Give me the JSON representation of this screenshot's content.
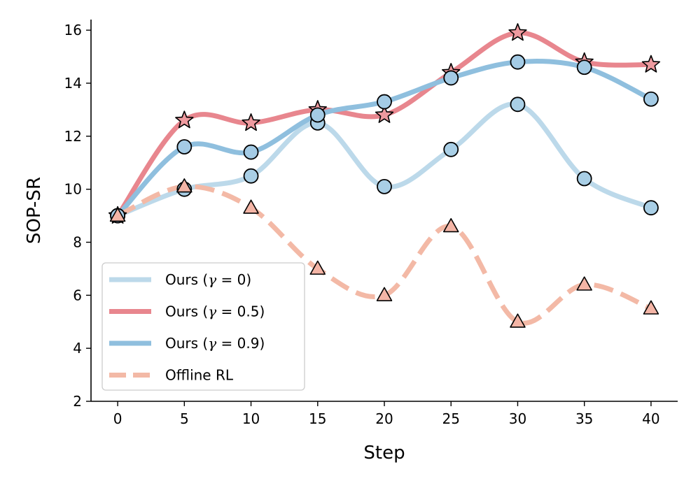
{
  "chart_data": {
    "type": "line",
    "title": "",
    "xlabel": "Step",
    "ylabel": "SOP-SR",
    "x": [
      0,
      5,
      10,
      15,
      20,
      25,
      30,
      35,
      40
    ],
    "xlim": [
      -2,
      42
    ],
    "ylim": [
      2,
      16.4
    ],
    "xticks": [
      "0",
      "5",
      "10",
      "15",
      "20",
      "25",
      "30",
      "35",
      "40"
    ],
    "yticks": [
      "2",
      "4",
      "6",
      "8",
      "10",
      "12",
      "14",
      "16"
    ],
    "grid": false,
    "legend_position": "lower-left",
    "series": [
      {
        "name": "Ours (γ = 0)",
        "legend_prefix": "Ours (",
        "legend_symbol": "γ",
        "legend_suffix": " = 0)",
        "color": "#bcd9ea",
        "marker_fill": "#a9cfe6",
        "marker": "circle",
        "dash": false,
        "values": [
          9.0,
          10.0,
          10.5,
          12.5,
          10.1,
          11.5,
          13.2,
          10.4,
          9.3
        ]
      },
      {
        "name": "Ours (γ = 0.5)",
        "legend_prefix": "Ours (",
        "legend_symbol": "γ",
        "legend_suffix": " = 0.5)",
        "color": "#e8868e",
        "marker_fill": "#ee9a9f",
        "marker": "star",
        "dash": false,
        "values": [
          9.0,
          12.6,
          12.5,
          13.0,
          12.8,
          14.4,
          15.9,
          14.8,
          14.7
        ]
      },
      {
        "name": "Ours (γ = 0.9)",
        "legend_prefix": "Ours (",
        "legend_symbol": "γ",
        "legend_suffix": " = 0.9)",
        "color": "#8fbfde",
        "marker_fill": "#a4cbe5",
        "marker": "circle",
        "dash": false,
        "values": [
          9.0,
          11.6,
          11.4,
          12.8,
          13.3,
          14.2,
          14.8,
          14.6,
          13.4
        ]
      },
      {
        "name": "Offline RL",
        "legend_prefix": "Offline RL",
        "legend_symbol": "",
        "legend_suffix": "",
        "color": "#f3b9a6",
        "marker_fill": "#f4b5a6",
        "marker": "triangle",
        "dash": true,
        "values": [
          9.0,
          10.1,
          9.3,
          7.0,
          6.0,
          8.6,
          5.0,
          6.4,
          5.5
        ]
      }
    ]
  }
}
